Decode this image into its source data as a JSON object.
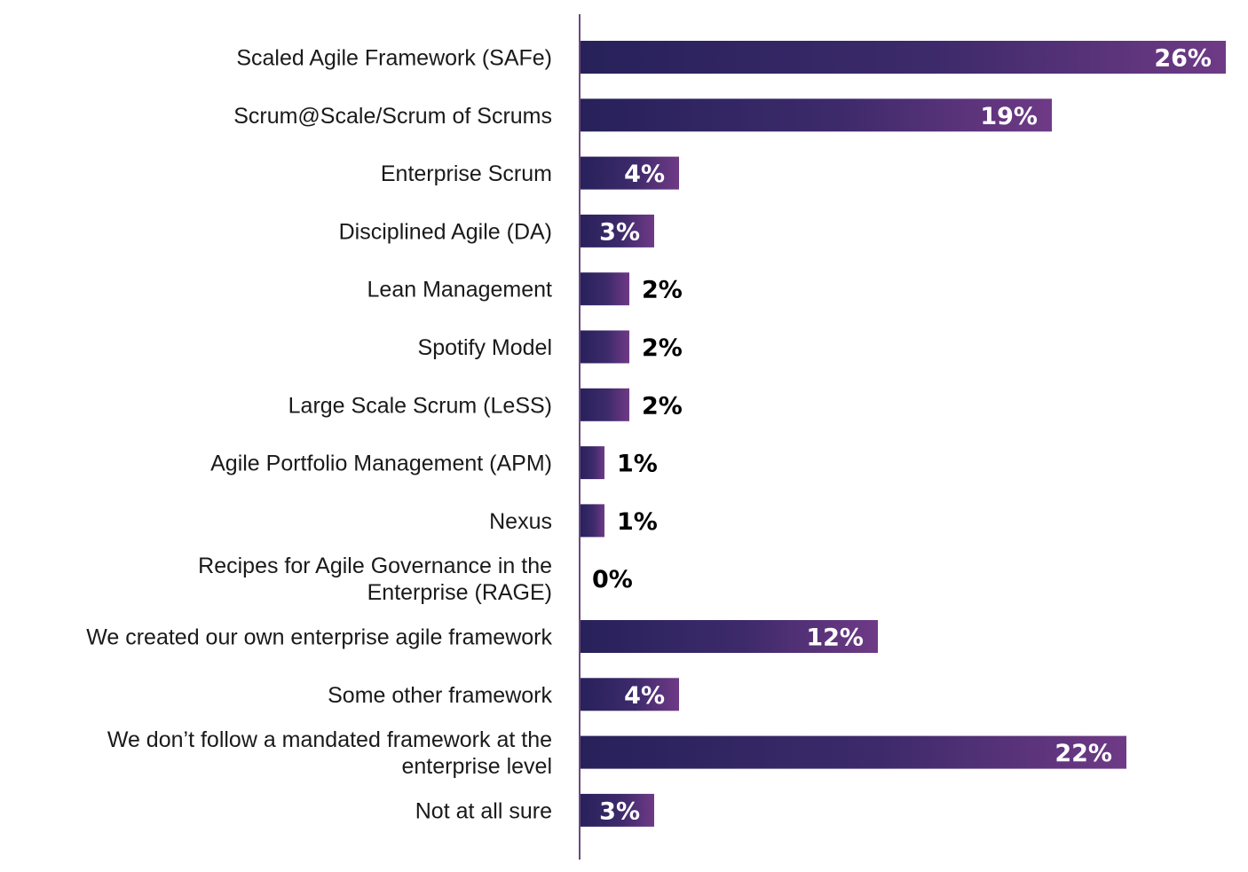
{
  "colors": {
    "bar_start": "#27215a",
    "bar_mid": "#3d2a6b",
    "bar_end": "#6f3a86",
    "axis": "#6b4a80"
  },
  "chart_data": {
    "type": "bar",
    "orientation": "horizontal",
    "title": "",
    "xlabel": "",
    "ylabel": "",
    "value_suffix": "%",
    "xlim": [
      0,
      26
    ],
    "grid": false,
    "legend": "none",
    "categories": [
      [
        "Scaled Agile Framework (SAFe)"
      ],
      [
        "Scrum@Scale/Scrum of Scrums"
      ],
      [
        "Enterprise Scrum"
      ],
      [
        "Disciplined Agile (DA)"
      ],
      [
        "Lean Management"
      ],
      [
        "Spotify Model"
      ],
      [
        "Large Scale Scrum (LeSS)"
      ],
      [
        "Agile Portfolio Management (APM)"
      ],
      [
        "Nexus"
      ],
      [
        "Recipes for Agile Governance in the",
        "Enterprise (RAGE)"
      ],
      [
        "We created our own enterprise agile framework"
      ],
      [
        "Some other framework"
      ],
      [
        "We don’t follow a mandated framework at the",
        "enterprise level"
      ],
      [
        "Not at all sure"
      ]
    ],
    "values": [
      26,
      19,
      4,
      3,
      2,
      2,
      2,
      1,
      1,
      0,
      12,
      4,
      22,
      3
    ],
    "value_labels": [
      "26%",
      "19%",
      "4%",
      "3%",
      "2%",
      "2%",
      "2%",
      "1%",
      "1%",
      "0%",
      "12%",
      "4%",
      "22%",
      "3%"
    ]
  }
}
